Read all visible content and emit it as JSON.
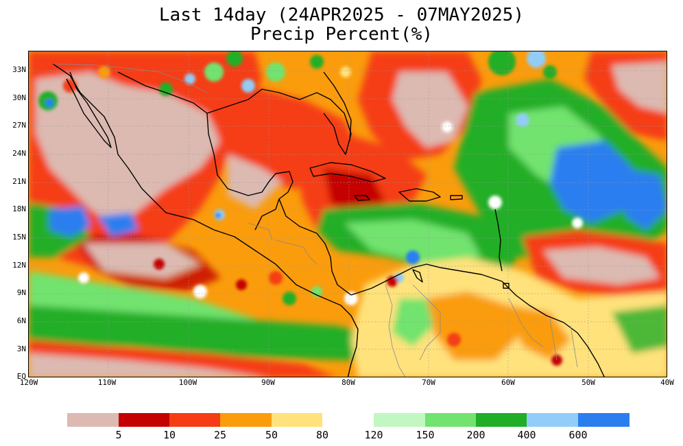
{
  "title": {
    "line1": "Last 14day (24APR2025 - 07MAY2025)",
    "line2": "Precip Percent(%)"
  },
  "axes": {
    "lat_labels": [
      "33N",
      "30N",
      "27N",
      "24N",
      "21N",
      "18N",
      "15N",
      "12N",
      "9N",
      "6N",
      "3N",
      "EQ"
    ],
    "lon_labels": [
      "120W",
      "110W",
      "100W",
      "90W",
      "80W",
      "70W",
      "60W",
      "50W",
      "40W"
    ]
  },
  "map": {
    "region": "Mexico, Central America, Caribbean, northern South America, tropical Atlantic",
    "lat_range": [
      0,
      35
    ],
    "lon_range": [
      -120,
      -40
    ],
    "grid": true,
    "colors": {
      "lt5": "#dcbab1",
      "5-10": "#c40000",
      "10-25": "#f53c14",
      "25-50": "#fa9c0c",
      "50-80": "#ffe27c",
      "80-120": "#ffffff",
      "120-150": "#c3f7c1",
      "150-200": "#71e36e",
      "200-400": "#20ae27",
      "400-600": "#91cdf7",
      "gt600": "#2a7ef0"
    }
  },
  "legend": {
    "colors_low": [
      "#dcbab1",
      "#c40000",
      "#f53c14",
      "#fa9c0c",
      "#ffe27c"
    ],
    "colors_high": [
      "#c3f7c1",
      "#71e36e",
      "#20ae27",
      "#91cdf7",
      "#2a7ef0"
    ],
    "labels_low": [
      "5",
      "10",
      "25",
      "50",
      "80"
    ],
    "labels_high": [
      "120",
      "150",
      "200",
      "400",
      "600"
    ]
  }
}
